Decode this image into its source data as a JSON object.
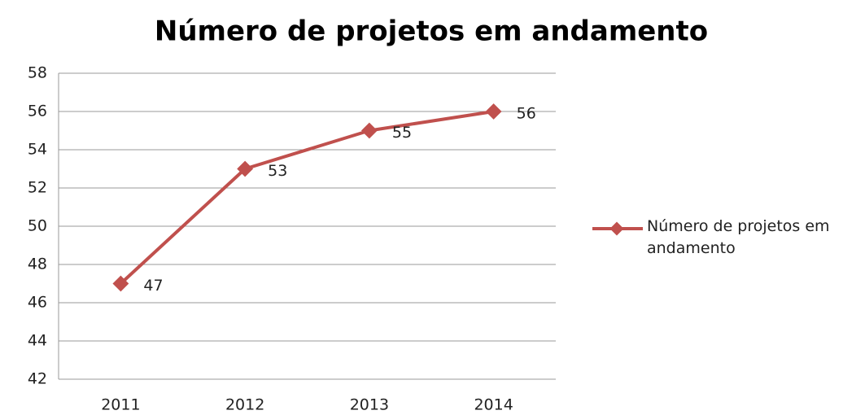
{
  "chart_data": {
    "type": "line",
    "title": "Número de projetos em andamento",
    "categories": [
      "2011",
      "2012",
      "2013",
      "2014"
    ],
    "series": [
      {
        "name": "Número de projetos em andamento",
        "color": "#c0504d",
        "values": [
          47,
          53,
          55,
          56
        ]
      }
    ],
    "ylim": [
      42,
      58
    ],
    "yticks": [
      42,
      44,
      46,
      48,
      50,
      52,
      54,
      56,
      58
    ],
    "grid": true,
    "legend": "right",
    "data_labels": true
  }
}
